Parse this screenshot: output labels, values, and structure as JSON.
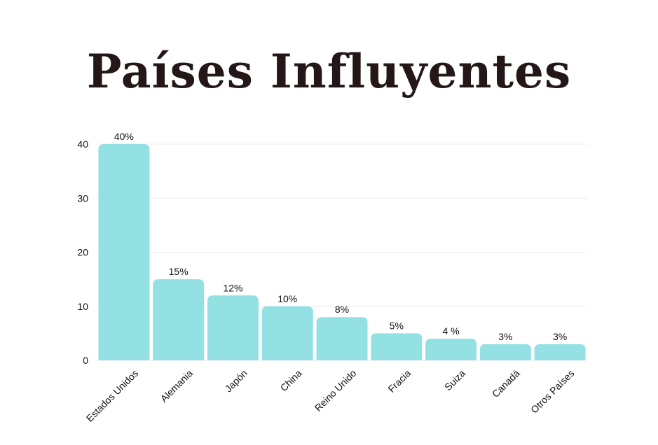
{
  "chart_data": {
    "type": "bar",
    "title": "Países Influyentes",
    "categories": [
      "Estados Unidos",
      "Alemania",
      "Japón",
      "China",
      "Reino Unido",
      "Fracia",
      "Suiza",
      "Canadá",
      "Otros Países"
    ],
    "values": [
      40,
      15,
      12,
      10,
      8,
      5,
      4,
      3,
      3
    ],
    "value_labels": [
      "40%",
      "15%",
      "12%",
      "10%",
      "8%",
      "5%",
      "4 %",
      "3%",
      "3%"
    ],
    "ylim": [
      0,
      40
    ],
    "yticks": [
      0,
      10,
      20,
      30,
      40
    ],
    "ytick_labels": [
      "0",
      "10",
      "20",
      "30",
      "40"
    ],
    "grid": true,
    "xlabel": "",
    "ylabel": "",
    "colors": {
      "bar": "#94E1E4",
      "grid": "#EDEDED",
      "title": "#231717",
      "text": "#111111"
    }
  }
}
